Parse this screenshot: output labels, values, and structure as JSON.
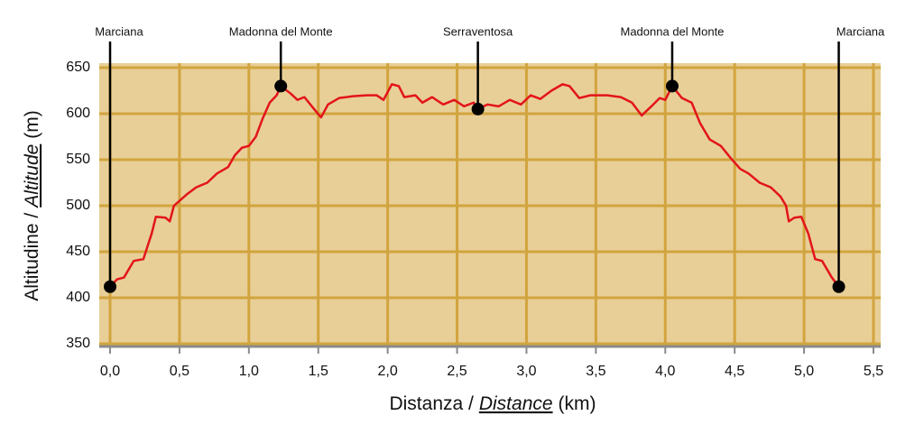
{
  "chart_data": {
    "type": "line",
    "x_label": {
      "main": "Distanza /",
      "italic": "Distance",
      "unit": "(km)"
    },
    "y_label": {
      "main": "Altitudine /",
      "italic": "Altitude",
      "unit": "(m)"
    },
    "x": [
      0.0,
      0.05,
      0.1,
      0.17,
      0.24,
      0.3,
      0.33,
      0.4,
      0.43,
      0.46,
      0.55,
      0.62,
      0.7,
      0.77,
      0.85,
      0.9,
      0.95,
      1.0,
      1.05,
      1.1,
      1.15,
      1.2,
      1.23,
      1.3,
      1.35,
      1.4,
      1.47,
      1.52,
      1.57,
      1.65,
      1.75,
      1.85,
      1.92,
      1.97,
      2.03,
      2.08,
      2.12,
      2.2,
      2.25,
      2.32,
      2.4,
      2.48,
      2.55,
      2.62,
      2.65,
      2.72,
      2.8,
      2.88,
      2.96,
      3.03,
      3.1,
      3.18,
      3.26,
      3.31,
      3.38,
      3.46,
      3.58,
      3.68,
      3.76,
      3.83,
      3.9,
      3.96,
      4.0,
      4.05,
      4.12,
      4.19,
      4.25,
      4.32,
      4.4,
      4.47,
      4.54,
      4.6,
      4.68,
      4.76,
      4.83,
      4.87,
      4.89,
      4.93,
      4.98,
      5.03,
      5.08,
      5.13,
      5.2,
      5.25
    ],
    "series": [
      {
        "name": "Altitudine",
        "color": "#e3141c",
        "values": [
          412,
          420,
          422,
          440,
          442,
          470,
          488,
          487,
          483,
          500,
          512,
          520,
          525,
          535,
          542,
          555,
          563,
          565,
          575,
          595,
          612,
          620,
          630,
          622,
          615,
          618,
          605,
          596,
          610,
          617,
          619,
          620,
          620,
          615,
          632,
          630,
          618,
          620,
          612,
          618,
          610,
          615,
          608,
          612,
          605,
          610,
          608,
          615,
          610,
          620,
          616,
          625,
          632,
          630,
          617,
          620,
          620,
          618,
          612,
          598,
          608,
          617,
          615,
          630,
          617,
          612,
          590,
          572,
          565,
          552,
          540,
          535,
          525,
          520,
          510,
          500,
          483,
          487,
          488,
          470,
          442,
          440,
          422,
          412
        ]
      }
    ],
    "waypoints": [
      {
        "name": "Marciana",
        "x": 0.0,
        "y": 412
      },
      {
        "name": "Madonna del Monte",
        "x": 1.23,
        "y": 630
      },
      {
        "name": "Serraventosa",
        "x": 2.65,
        "y": 605
      },
      {
        "name": "Madonna del Monte",
        "x": 4.05,
        "y": 630
      },
      {
        "name": "Marciana",
        "x": 5.25,
        "y": 412
      }
    ],
    "xlim": [
      0,
      5.5
    ],
    "ylim": [
      350,
      650
    ],
    "xticks": [
      {
        "value": 0,
        "label": "0,0"
      },
      {
        "value": 0.5,
        "label": "0,5"
      },
      {
        "value": 1,
        "label": "1,0"
      },
      {
        "value": 1.5,
        "label": "1,5"
      },
      {
        "value": 2,
        "label": "2,0"
      },
      {
        "value": 2.5,
        "label": "2,5"
      },
      {
        "value": 3,
        "label": "3,0"
      },
      {
        "value": 3.5,
        "label": "3,5"
      },
      {
        "value": 4,
        "label": "4,0"
      },
      {
        "value": 4.5,
        "label": "4,5"
      },
      {
        "value": 5,
        "label": "5,0"
      },
      {
        "value": 5.5,
        "label": "5,5"
      }
    ],
    "yticks": [
      350,
      400,
      450,
      500,
      550,
      600,
      650
    ],
    "grid": true,
    "background": "#e8cf97",
    "grid_color": "#d2a43e"
  }
}
